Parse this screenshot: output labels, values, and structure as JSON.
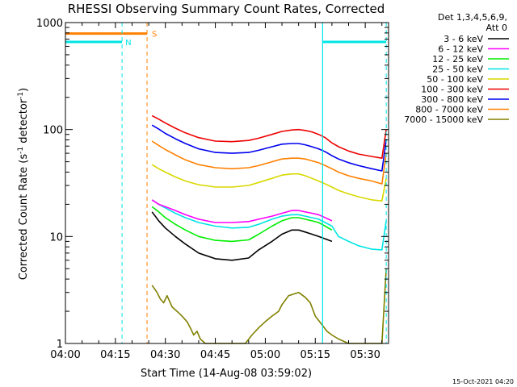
{
  "chart_data": {
    "type": "line",
    "title": "RHESSI Observing Summary Count Rates, Corrected",
    "xlabel": "Start Time (14-Aug-08 03:59:02)",
    "ylabel_main": "Corrected Count Rate (s",
    "ylabel_sup1": "-1",
    "ylabel_mid": " detector",
    "ylabel_sup2": "-1",
    "ylabel_end": ")",
    "x_unit": "minutes after 04:00 UT",
    "xlim": [
      0,
      97
    ],
    "ylim": [
      1,
      1000
    ],
    "yscale": "log",
    "x_ticks": [
      {
        "value": 0,
        "label": "04:00"
      },
      {
        "value": 15,
        "label": "04:15"
      },
      {
        "value": 30,
        "label": "04:30"
      },
      {
        "value": 45,
        "label": "04:45"
      },
      {
        "value": 60,
        "label": "05:00"
      },
      {
        "value": 75,
        "label": "05:15"
      },
      {
        "value": 90,
        "label": "05:30"
      }
    ],
    "y_ticks": [
      {
        "value": 1,
        "label": "1"
      },
      {
        "value": 10,
        "label": "10"
      },
      {
        "value": 100,
        "label": "100"
      },
      {
        "value": 1000,
        "label": "1000"
      }
    ],
    "legend": {
      "placement": "top-right",
      "header_line1": "Det 1,3,4,5,6,9,",
      "header_line2": "Att 0"
    },
    "series": [
      {
        "name": "3 - 6 keV",
        "color": "#000000",
        "x": [
          26,
          28,
          30,
          33,
          36,
          40,
          45,
          50,
          55,
          58,
          62,
          65,
          68,
          70,
          72,
          74,
          76,
          78,
          80
        ],
        "y": [
          17,
          14,
          12,
          10,
          8.5,
          7,
          6.2,
          6,
          6.3,
          7.5,
          9,
          10.5,
          11.5,
          11.5,
          11,
          10.5,
          10,
          9.5,
          9
        ]
      },
      {
        "name": "6 - 12 keV",
        "color": "#ff00ff",
        "x": [
          26,
          28,
          30,
          33,
          36,
          40,
          45,
          50,
          55,
          58,
          62,
          65,
          68,
          70,
          72,
          74,
          76,
          78,
          80
        ],
        "y": [
          22,
          20,
          19,
          17.5,
          16,
          14.5,
          13.5,
          13.5,
          13.8,
          14.5,
          15.5,
          16.5,
          17.5,
          17.5,
          17,
          16.5,
          16,
          15,
          14
        ]
      },
      {
        "name": "12 - 25 keV",
        "color": "#00ee00",
        "x": [
          26,
          28,
          30,
          33,
          36,
          40,
          45,
          50,
          55,
          58,
          62,
          65,
          68,
          70,
          72,
          74,
          76,
          78,
          80
        ],
        "y": [
          19,
          17,
          15,
          13,
          11.5,
          10,
          9.2,
          9,
          9.3,
          10.5,
          12.5,
          14,
          15,
          15,
          14.5,
          14,
          13.5,
          12.5,
          11.5
        ]
      },
      {
        "name": "25 - 50 keV",
        "color": "#00e5e5",
        "x": [
          26,
          28,
          30,
          33,
          36,
          40,
          45,
          50,
          55,
          58,
          62,
          65,
          68,
          70,
          72,
          74,
          76,
          78,
          80,
          82,
          85,
          88,
          92,
          95,
          96.3
        ],
        "y": [
          22,
          20,
          18.5,
          16.5,
          15,
          13.5,
          12.5,
          12,
          12.2,
          13,
          14.5,
          15.5,
          16,
          16,
          15.5,
          15,
          14.5,
          13.5,
          12.5,
          10,
          9,
          8.2,
          7.6,
          7.5,
          14
        ]
      },
      {
        "name": "50 - 100 keV",
        "color": "#d8d800",
        "x": [
          26,
          28,
          30,
          33,
          36,
          40,
          45,
          50,
          55,
          58,
          62,
          65,
          68,
          70,
          72,
          74,
          76,
          78,
          80,
          82,
          85,
          88,
          92,
          95,
          96.3
        ],
        "y": [
          47,
          43,
          40,
          36,
          33,
          30.5,
          29,
          29,
          30,
          32,
          35,
          37.5,
          38.5,
          38.5,
          37,
          35,
          33,
          31,
          29,
          27,
          25,
          23.5,
          22,
          21.5,
          35
        ]
      },
      {
        "name": "100 - 300 keV",
        "color": "#ee0000",
        "x": [
          26,
          28,
          30,
          33,
          36,
          40,
          45,
          50,
          55,
          58,
          62,
          65,
          68,
          70,
          72,
          74,
          76,
          78,
          80,
          82,
          85,
          88,
          92,
          95,
          96.3
        ],
        "y": [
          135,
          125,
          115,
          103,
          93,
          84,
          78,
          77,
          79,
          83,
          90,
          96,
          99,
          100,
          98,
          95,
          90,
          84,
          75,
          69,
          63,
          59,
          56,
          54,
          100
        ]
      },
      {
        "name": "300 - 800 keV",
        "color": "#0000ee",
        "x": [
          26,
          28,
          30,
          33,
          36,
          40,
          45,
          50,
          55,
          58,
          62,
          65,
          68,
          70,
          72,
          74,
          76,
          78,
          80,
          82,
          85,
          88,
          92,
          95,
          96.3
        ],
        "y": [
          110,
          101,
          92,
          82,
          74,
          66,
          61,
          60,
          61,
          64,
          69,
          73,
          74,
          74,
          72,
          69,
          66,
          62,
          57,
          53,
          49,
          46,
          43,
          41,
          80
        ]
      },
      {
        "name": "800 - 7000 keV",
        "color": "#ff8000",
        "x": [
          26,
          28,
          30,
          33,
          36,
          40,
          45,
          50,
          55,
          58,
          62,
          65,
          68,
          70,
          72,
          74,
          76,
          78,
          80,
          82,
          85,
          88,
          92,
          95,
          96.3
        ],
        "y": [
          78,
          71,
          65,
          58,
          52,
          47,
          44,
          43,
          44,
          46,
          50,
          53,
          54,
          54,
          53,
          51,
          49,
          46,
          43,
          40,
          37,
          35,
          33,
          31,
          60
        ]
      },
      {
        "name": "7000 - 15000 keV",
        "color": "#808000",
        "x": [
          26,
          27.5,
          28.5,
          29.5,
          30.5,
          32,
          33.5,
          35,
          36.5,
          37.5,
          38.5,
          39.5,
          40.5,
          42,
          54,
          56,
          58,
          60,
          62,
          64,
          65,
          67,
          70,
          72,
          73.5,
          75,
          77,
          78.5,
          80,
          82,
          85,
          88,
          92,
          95,
          96.3
        ],
        "y": [
          3.5,
          3,
          2.6,
          2.4,
          2.8,
          2.2,
          2,
          1.8,
          1.6,
          1.4,
          1.2,
          1.3,
          1.1,
          1,
          1,
          1.2,
          1.4,
          1.6,
          1.8,
          2,
          2.3,
          2.8,
          3,
          2.7,
          2.4,
          1.8,
          1.5,
          1.3,
          1.2,
          1.1,
          1,
          1,
          1,
          1,
          5
        ]
      }
    ],
    "attenuator_markers": [
      {
        "label": "S",
        "x": 24.5,
        "color": "#ff8000",
        "line_from": 0,
        "line_to": 24.5,
        "y": 790
      }
    ],
    "orbit_markers": [
      {
        "label": "N",
        "x": 17,
        "color": "#00e5e5",
        "line_from": 0,
        "line_to": 17,
        "y": 660
      },
      {
        "x": 96.3,
        "color": "#00e5e5"
      }
    ],
    "solid_vlines": [
      {
        "x": 77.2,
        "color": "#00e5e5",
        "line_to": 96.3,
        "y": 660
      }
    ],
    "grid": false
  },
  "footer": {
    "timestamp": "15-Oct-2021 04:20"
  }
}
